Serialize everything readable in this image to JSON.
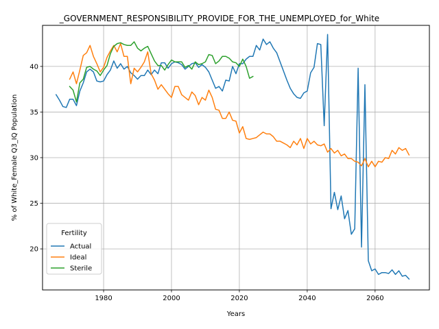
{
  "chart_data": {
    "type": "line",
    "title": "_GOVERNMENT_RESPONSIBILITY_PROVIDE_FOR_THE_UNEMPLOYED_for_White",
    "xlabel": "Years",
    "ylabel": "% of White_Female Q3_IQ Population",
    "xlim": [
      1962,
      2076
    ],
    "ylim": [
      15.5,
      44.5
    ],
    "xticks": [
      1980,
      2000,
      2020,
      2040,
      2060
    ],
    "yticks": [
      20,
      25,
      30,
      35,
      40
    ],
    "grid": true,
    "legend": {
      "title": "Fertility",
      "position": "lower-left"
    },
    "series": [
      {
        "name": "Actual",
        "color": "#1f77b4",
        "points": [
          [
            1966,
            36.9
          ],
          [
            1967,
            36.3
          ],
          [
            1968,
            35.6
          ],
          [
            1969,
            35.5
          ],
          [
            1970,
            36.4
          ],
          [
            1971,
            36.4
          ],
          [
            1972,
            35.7
          ],
          [
            1973,
            37.3
          ],
          [
            1974,
            38.2
          ],
          [
            1975,
            39.4
          ],
          [
            1976,
            39.7
          ],
          [
            1977,
            39.4
          ],
          [
            1978,
            38.4
          ],
          [
            1979,
            38.3
          ],
          [
            1980,
            38.4
          ],
          [
            1981,
            39.1
          ],
          [
            1982,
            39.6
          ],
          [
            1983,
            40.6
          ],
          [
            1984,
            39.8
          ],
          [
            1985,
            40.3
          ],
          [
            1986,
            39.7
          ],
          [
            1987,
            40.0
          ],
          [
            1988,
            39.3
          ],
          [
            1989,
            39.0
          ],
          [
            1990,
            38.6
          ],
          [
            1991,
            39.0
          ],
          [
            1992,
            39.0
          ],
          [
            1993,
            39.6
          ],
          [
            1994,
            39.1
          ],
          [
            1995,
            39.6
          ],
          [
            1996,
            39.2
          ],
          [
            1997,
            40.4
          ],
          [
            1998,
            40.4
          ],
          [
            1999,
            39.8
          ],
          [
            2000,
            40.3
          ],
          [
            2001,
            40.5
          ],
          [
            2002,
            40.4
          ],
          [
            2003,
            40.2
          ],
          [
            2004,
            39.7
          ],
          [
            2005,
            40.0
          ],
          [
            2006,
            40.3
          ],
          [
            2007,
            40.4
          ],
          [
            2008,
            39.9
          ],
          [
            2009,
            40.2
          ],
          [
            2010,
            39.9
          ],
          [
            2011,
            39.4
          ],
          [
            2012,
            38.5
          ],
          [
            2013,
            37.6
          ],
          [
            2014,
            37.8
          ],
          [
            2015,
            37.3
          ],
          [
            2016,
            38.5
          ],
          [
            2017,
            38.4
          ],
          [
            2018,
            40.0
          ],
          [
            2019,
            39.2
          ],
          [
            2020,
            40.3
          ],
          [
            2021,
            40.3
          ],
          [
            2022,
            40.8
          ],
          [
            2023,
            41.1
          ],
          [
            2024,
            41.1
          ],
          [
            2025,
            42.3
          ],
          [
            2026,
            41.8
          ],
          [
            2027,
            43.0
          ],
          [
            2028,
            42.4
          ],
          [
            2029,
            42.7
          ],
          [
            2030,
            42.0
          ],
          [
            2031,
            41.5
          ],
          [
            2032,
            40.5
          ],
          [
            2033,
            39.5
          ],
          [
            2034,
            38.5
          ],
          [
            2035,
            37.6
          ],
          [
            2036,
            37.0
          ],
          [
            2037,
            36.6
          ],
          [
            2038,
            36.5
          ],
          [
            2039,
            37.1
          ],
          [
            2040,
            37.3
          ],
          [
            2041,
            39.3
          ],
          [
            2042,
            39.9
          ],
          [
            2043,
            42.5
          ],
          [
            2044,
            42.4
          ],
          [
            2045,
            33.5
          ],
          [
            2046,
            43.5
          ],
          [
            2047,
            24.4
          ],
          [
            2048,
            26.2
          ],
          [
            2049,
            24.3
          ],
          [
            2050,
            25.8
          ],
          [
            2051,
            23.3
          ],
          [
            2052,
            24.2
          ],
          [
            2053,
            21.6
          ],
          [
            2054,
            22.2
          ],
          [
            2055,
            39.8
          ],
          [
            2056,
            20.2
          ],
          [
            2057,
            38.0
          ],
          [
            2058,
            18.7
          ],
          [
            2059,
            17.6
          ],
          [
            2060,
            17.8
          ],
          [
            2061,
            17.2
          ],
          [
            2062,
            17.4
          ],
          [
            2063,
            17.4
          ],
          [
            2064,
            17.3
          ],
          [
            2065,
            17.7
          ],
          [
            2066,
            17.2
          ],
          [
            2067,
            17.6
          ],
          [
            2068,
            17.0
          ],
          [
            2069,
            17.1
          ],
          [
            2070,
            16.7
          ]
        ]
      },
      {
        "name": "Ideal",
        "color": "#ff7f0e",
        "points": [
          [
            1970,
            38.6
          ],
          [
            1971,
            39.4
          ],
          [
            1972,
            38.1
          ],
          [
            1973,
            39.6
          ],
          [
            1974,
            41.2
          ],
          [
            1975,
            41.5
          ],
          [
            1976,
            42.3
          ],
          [
            1977,
            41.1
          ],
          [
            1978,
            40.3
          ],
          [
            1979,
            39.4
          ],
          [
            1980,
            39.9
          ],
          [
            1981,
            41.0
          ],
          [
            1982,
            41.7
          ],
          [
            1983,
            42.3
          ],
          [
            1984,
            41.6
          ],
          [
            1985,
            42.5
          ],
          [
            1986,
            41.1
          ],
          [
            1987,
            41.1
          ],
          [
            1988,
            38.1
          ],
          [
            1989,
            39.8
          ],
          [
            1990,
            39.4
          ],
          [
            1991,
            39.9
          ],
          [
            1992,
            40.5
          ],
          [
            1993,
            41.6
          ],
          [
            1994,
            39.2
          ],
          [
            1995,
            38.5
          ],
          [
            1996,
            37.5
          ],
          [
            1997,
            38.0
          ],
          [
            1998,
            37.5
          ],
          [
            1999,
            37.0
          ],
          [
            2000,
            36.6
          ],
          [
            2001,
            37.8
          ],
          [
            2002,
            37.8
          ],
          [
            2003,
            36.9
          ],
          [
            2004,
            36.6
          ],
          [
            2005,
            36.3
          ],
          [
            2006,
            37.2
          ],
          [
            2007,
            36.8
          ],
          [
            2008,
            35.8
          ],
          [
            2009,
            36.6
          ],
          [
            2010,
            36.3
          ],
          [
            2011,
            37.4
          ],
          [
            2012,
            36.6
          ],
          [
            2013,
            35.3
          ],
          [
            2014,
            35.2
          ],
          [
            2015,
            34.3
          ],
          [
            2016,
            34.3
          ],
          [
            2017,
            35.0
          ],
          [
            2018,
            34.1
          ],
          [
            2019,
            34.0
          ],
          [
            2020,
            32.7
          ],
          [
            2021,
            33.4
          ],
          [
            2022,
            32.1
          ],
          [
            2023,
            32.0
          ],
          [
            2024,
            32.1
          ],
          [
            2025,
            32.2
          ],
          [
            2026,
            32.5
          ],
          [
            2027,
            32.8
          ],
          [
            2028,
            32.6
          ],
          [
            2029,
            32.6
          ],
          [
            2030,
            32.3
          ],
          [
            2031,
            31.8
          ],
          [
            2032,
            31.8
          ],
          [
            2033,
            31.6
          ],
          [
            2034,
            31.4
          ],
          [
            2035,
            31.1
          ],
          [
            2036,
            31.8
          ],
          [
            2037,
            31.4
          ],
          [
            2038,
            32.1
          ],
          [
            2039,
            31.0
          ],
          [
            2040,
            32.1
          ],
          [
            2041,
            31.5
          ],
          [
            2042,
            31.8
          ],
          [
            2043,
            31.4
          ],
          [
            2044,
            31.3
          ],
          [
            2045,
            31.5
          ],
          [
            2046,
            30.6
          ],
          [
            2047,
            31.0
          ],
          [
            2048,
            30.5
          ],
          [
            2049,
            30.8
          ],
          [
            2050,
            30.2
          ],
          [
            2051,
            30.4
          ],
          [
            2052,
            29.9
          ],
          [
            2053,
            29.9
          ],
          [
            2054,
            29.6
          ],
          [
            2055,
            29.5
          ],
          [
            2056,
            29.1
          ],
          [
            2057,
            29.9
          ],
          [
            2058,
            29.0
          ],
          [
            2059,
            29.6
          ],
          [
            2060,
            29.0
          ],
          [
            2061,
            29.6
          ],
          [
            2062,
            29.5
          ],
          [
            2063,
            30.0
          ],
          [
            2064,
            29.9
          ],
          [
            2065,
            30.8
          ],
          [
            2066,
            30.4
          ],
          [
            2067,
            31.1
          ],
          [
            2068,
            30.8
          ],
          [
            2069,
            31.0
          ],
          [
            2070,
            30.3
          ]
        ]
      },
      {
        "name": "Sterile",
        "color": "#2ca02c",
        "points": [
          [
            1970,
            37.8
          ],
          [
            1971,
            37.4
          ],
          [
            1972,
            36.1
          ],
          [
            1973,
            38.2
          ],
          [
            1974,
            38.6
          ],
          [
            1975,
            39.9
          ],
          [
            1976,
            40.0
          ],
          [
            1977,
            39.7
          ],
          [
            1978,
            39.5
          ],
          [
            1979,
            39.0
          ],
          [
            1980,
            39.6
          ],
          [
            1981,
            40.1
          ],
          [
            1982,
            41.4
          ],
          [
            1983,
            42.2
          ],
          [
            1984,
            42.5
          ],
          [
            1985,
            42.6
          ],
          [
            1986,
            42.4
          ],
          [
            1987,
            42.3
          ],
          [
            1988,
            42.3
          ],
          [
            1989,
            42.7
          ],
          [
            1990,
            42.0
          ],
          [
            1991,
            41.7
          ],
          [
            1992,
            42.0
          ],
          [
            1993,
            42.2
          ],
          [
            1994,
            41.4
          ],
          [
            1995,
            40.6
          ],
          [
            1996,
            40.1
          ],
          [
            1997,
            40.1
          ],
          [
            1998,
            39.6
          ],
          [
            1999,
            40.2
          ],
          [
            2000,
            40.7
          ],
          [
            2001,
            40.5
          ],
          [
            2002,
            40.5
          ],
          [
            2003,
            40.5
          ],
          [
            2004,
            39.9
          ],
          [
            2005,
            40.1
          ],
          [
            2006,
            39.7
          ],
          [
            2007,
            40.5
          ],
          [
            2008,
            40.2
          ],
          [
            2009,
            40.3
          ],
          [
            2010,
            40.5
          ],
          [
            2011,
            41.3
          ],
          [
            2012,
            41.2
          ],
          [
            2013,
            40.3
          ],
          [
            2014,
            40.6
          ],
          [
            2015,
            41.1
          ],
          [
            2016,
            41.1
          ],
          [
            2017,
            40.9
          ],
          [
            2018,
            40.5
          ],
          [
            2019,
            40.4
          ],
          [
            2020,
            40.0
          ],
          [
            2021,
            40.8
          ],
          [
            2022,
            40.0
          ],
          [
            2023,
            38.7
          ],
          [
            2024,
            38.9
          ]
        ]
      }
    ]
  }
}
